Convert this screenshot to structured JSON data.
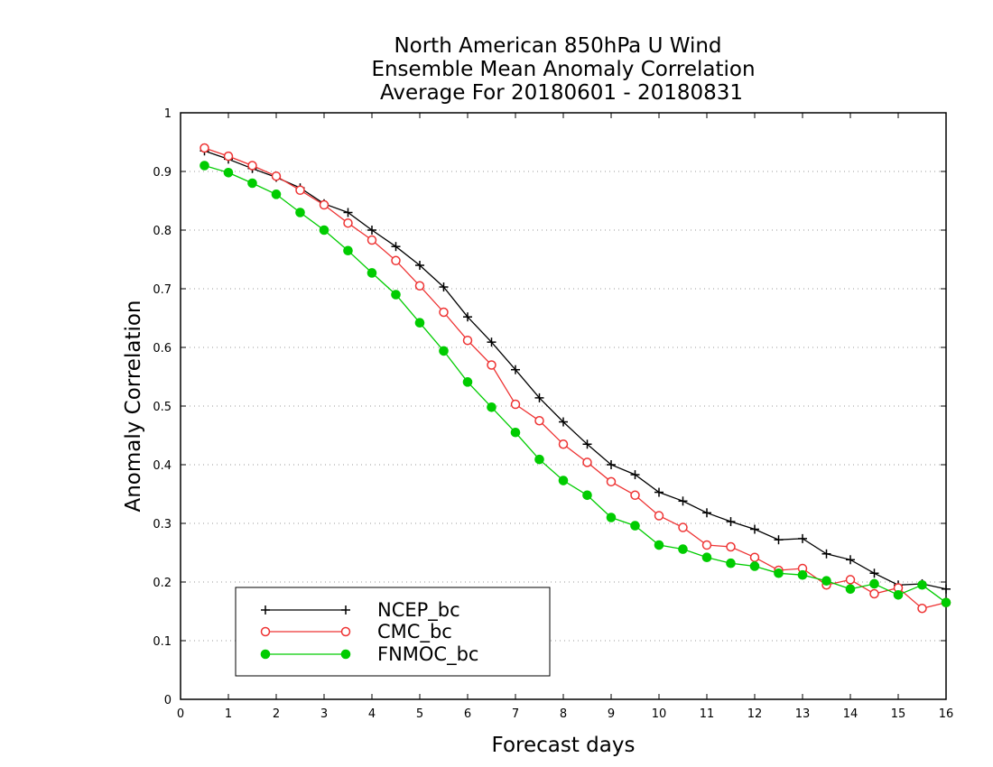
{
  "chart_data": {
    "type": "line",
    "title_lines": [
      "North American 850hPa U Wind",
      "Ensemble Mean Anomaly Correlation",
      "Average For 20180601 - 20180831"
    ],
    "xlabel": "Forecast days",
    "ylabel": "Anomaly Correlation",
    "xlim": [
      0,
      16
    ],
    "ylim": [
      0,
      1
    ],
    "xticks": [
      "0",
      "1",
      "2",
      "3",
      "4",
      "5",
      "6",
      "7",
      "8",
      "9",
      "10",
      "11",
      "12",
      "13",
      "14",
      "15",
      "16"
    ],
    "yticks": [
      "0",
      "0.1",
      "0.2",
      "0.3",
      "0.4",
      "0.5",
      "0.6",
      "0.7",
      "0.8",
      "0.9",
      "1"
    ],
    "grid": "horizontal dotted",
    "legend_position": "bottom-left",
    "x": [
      0.5,
      1,
      1.5,
      2,
      2.5,
      3,
      3.5,
      4,
      4.5,
      5,
      5.5,
      6,
      6.5,
      7,
      7.5,
      8,
      8.5,
      9,
      9.5,
      10,
      10.5,
      11,
      11.5,
      12,
      12.5,
      13,
      13.5,
      14,
      14.5,
      15,
      15.5,
      16
    ],
    "series": [
      {
        "name": "NCEP_bc",
        "color": "#000000",
        "marker": "plus",
        "values": [
          0.935,
          0.921,
          0.905,
          0.89,
          0.872,
          0.845,
          0.83,
          0.8,
          0.772,
          0.74,
          0.703,
          0.652,
          0.609,
          0.562,
          0.514,
          0.473,
          0.435,
          0.4,
          0.383,
          0.353,
          0.338,
          0.318,
          0.303,
          0.29,
          0.272,
          0.274,
          0.248,
          0.238,
          0.215,
          0.195,
          0.197,
          0.188
        ]
      },
      {
        "name": "CMC_bc",
        "color": "#ee3333",
        "marker": "open-circle",
        "values": [
          0.94,
          0.926,
          0.91,
          0.892,
          0.868,
          0.843,
          0.812,
          0.783,
          0.748,
          0.705,
          0.66,
          0.612,
          0.57,
          0.503,
          0.475,
          0.435,
          0.404,
          0.371,
          0.348,
          0.313,
          0.293,
          0.263,
          0.26,
          0.242,
          0.22,
          0.223,
          0.195,
          0.204,
          0.18,
          0.19,
          0.155,
          0.165
        ]
      },
      {
        "name": "FNMOC_bc",
        "color": "#00cc00",
        "marker": "filled-circle",
        "values": [
          0.91,
          0.898,
          0.88,
          0.861,
          0.83,
          0.8,
          0.765,
          0.727,
          0.69,
          0.642,
          0.594,
          0.541,
          0.498,
          0.455,
          0.409,
          0.373,
          0.348,
          0.31,
          0.296,
          0.263,
          0.256,
          0.242,
          0.232,
          0.227,
          0.215,
          0.212,
          0.202,
          0.188,
          0.197,
          0.178,
          0.195,
          0.165
        ]
      }
    ]
  }
}
